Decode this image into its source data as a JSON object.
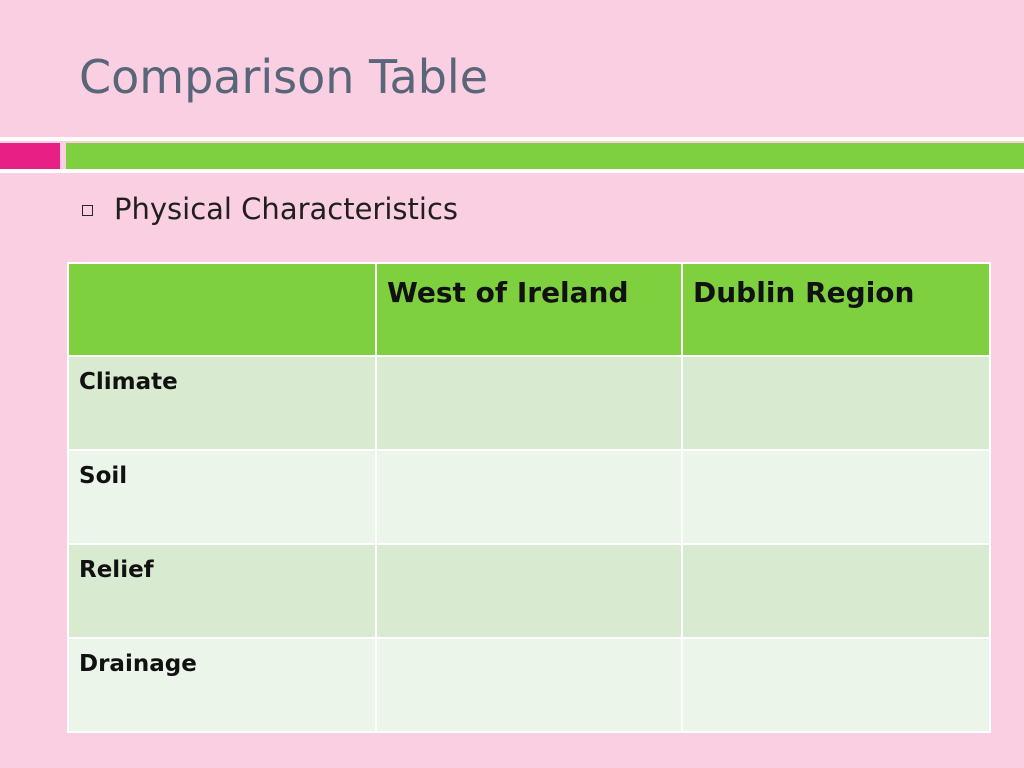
{
  "slide": {
    "title": "Comparison Table"
  },
  "accent": {
    "pink": "#e81f84",
    "green": "#7ed03e",
    "background": "#f9cfe1"
  },
  "bullet": {
    "icon": "hollow-square-bullet-icon",
    "text": "Physical Characteristics"
  },
  "table": {
    "headers": [
      "",
      "West of Ireland",
      "Dublin Region"
    ],
    "rows": [
      {
        "label": "Climate",
        "west": "",
        "dublin": ""
      },
      {
        "label": "Soil",
        "west": "",
        "dublin": ""
      },
      {
        "label": "Relief",
        "west": "",
        "dublin": ""
      },
      {
        "label": "Drainage",
        "west": "",
        "dublin": ""
      }
    ],
    "colors": {
      "header": "#7ed03e",
      "row_dark": "#d8ebd0",
      "row_light": "#ecf5e9"
    }
  }
}
